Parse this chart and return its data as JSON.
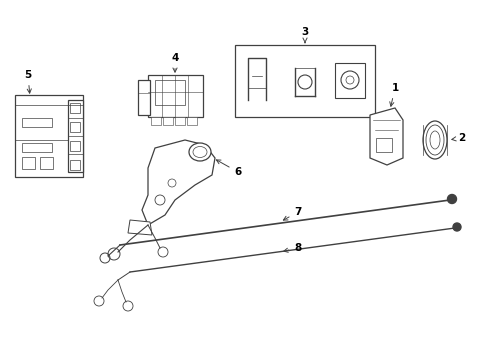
{
  "background_color": "#ffffff",
  "line_color": "#404040",
  "label_color": "#000000",
  "figsize": [
    4.9,
    3.6
  ],
  "dpi": 100
}
